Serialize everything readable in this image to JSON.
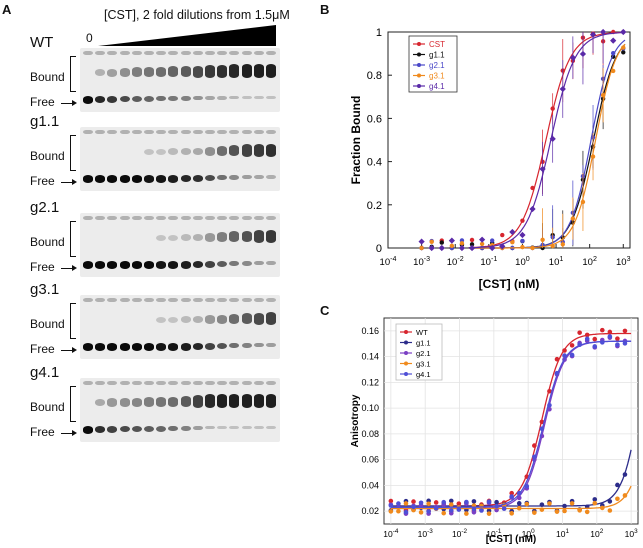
{
  "panel_labels": {
    "a": "A",
    "b": "B",
    "c": "C"
  },
  "panel_a": {
    "header": "[CST], 2 fold dilutions from 1.5μM",
    "zero_label": "0",
    "bound_label": "Bound",
    "free_label": "Free",
    "gels": [
      {
        "name": "WT",
        "bound_level": [
          0,
          0.15,
          0.25,
          0.35,
          0.45,
          0.5,
          0.55,
          0.6,
          0.65,
          0.75,
          0.85,
          0.9,
          0.95,
          1,
          1,
          1
        ]
      },
      {
        "name": "g1.1",
        "bound_level": [
          0,
          0,
          0,
          0,
          0,
          0.05,
          0.05,
          0.1,
          0.15,
          0.2,
          0.35,
          0.55,
          0.7,
          0.8,
          0.85,
          0.9
        ]
      },
      {
        "name": "g2.1",
        "bound_level": [
          0,
          0,
          0,
          0,
          0,
          0,
          0.05,
          0.05,
          0.1,
          0.15,
          0.3,
          0.45,
          0.6,
          0.7,
          0.8,
          0.85
        ]
      },
      {
        "name": "g3.1",
        "bound_level": [
          0,
          0,
          0,
          0,
          0,
          0,
          0.05,
          0.05,
          0.1,
          0.15,
          0.3,
          0.4,
          0.55,
          0.65,
          0.75,
          0.8
        ]
      },
      {
        "name": "g4.1",
        "bound_level": [
          0,
          0.2,
          0.3,
          0.35,
          0.4,
          0.45,
          0.5,
          0.55,
          0.65,
          0.8,
          0.95,
          1,
          1,
          1,
          1,
          1
        ]
      }
    ]
  },
  "chart_data": [
    {
      "type": "scatter",
      "panel": "B",
      "xlabel": "[CST] (nM)",
      "ylabel": "Fraction  Bound",
      "xscale": "log",
      "xlim": [
        -4,
        3.2
      ],
      "ylim": [
        0,
        1
      ],
      "xticks": [
        {
          "e": -4,
          "label": "10-4"
        },
        {
          "e": -3,
          "label": "10-3"
        },
        {
          "e": -2,
          "label": "10-2"
        },
        {
          "e": -1,
          "label": "10-1"
        },
        {
          "e": 0,
          "label": "100"
        },
        {
          "e": 1,
          "label": "101"
        },
        {
          "e": 2,
          "label": "102"
        },
        {
          "e": 3,
          "label": "103"
        }
      ],
      "yticks": [
        0,
        0.2,
        0.4,
        0.6,
        0.8,
        1
      ],
      "ytick_labels": [
        "0",
        "0.2",
        "0.4",
        "0.6",
        "0.8",
        "1"
      ],
      "legend_position": "top-left",
      "series": [
        {
          "name": "CST",
          "color": "#d7262f",
          "kd": 5,
          "n": 1.2
        },
        {
          "name": "g1.1",
          "color": "#111111",
          "kd": 130,
          "n": 1.3
        },
        {
          "name": "g2.1",
          "color": "#4a48c8",
          "kd": 110,
          "n": 1.4
        },
        {
          "name": "g3.1",
          "color": "#f08a1d",
          "kd": 150,
          "n": 1.4
        },
        {
          "name": "g4.1",
          "color": "#5a2aa8",
          "kd": 7,
          "n": 1.2
        }
      ]
    },
    {
      "type": "scatter",
      "panel": "C",
      "xlabel": "[CST] (nM)",
      "ylabel": "Anisotropy",
      "xscale": "log",
      "xlim": [
        -4.2,
        3.2
      ],
      "ylim": [
        0.01,
        0.17
      ],
      "xticks": [
        {
          "e": -4,
          "label": "10-4"
        },
        {
          "e": -3,
          "label": "10-3"
        },
        {
          "e": -2,
          "label": "10-2"
        },
        {
          "e": -1,
          "label": "10-1"
        },
        {
          "e": 0,
          "label": "100"
        },
        {
          "e": 1,
          "label": "101"
        },
        {
          "e": 2,
          "label": "102"
        },
        {
          "e": 3,
          "label": "103"
        }
      ],
      "yticks": [
        0.02,
        0.04,
        0.06,
        0.08,
        0.1,
        0.12,
        0.14,
        0.16
      ],
      "ytick_labels": [
        "0.02",
        "0.04",
        "0.06",
        "0.08",
        "0.10",
        "0.12",
        "0.14",
        "0.16"
      ],
      "legend_position": "top-left",
      "series": [
        {
          "name": "WT",
          "color": "#d7262f",
          "kd": 2.5,
          "n": 1.5,
          "base": 0.024,
          "top": 0.158
        },
        {
          "name": "g1.1",
          "color": "#2c2c8a",
          "kd": 2000,
          "n": 1.6,
          "base": 0.024,
          "top": 0.2
        },
        {
          "name": "g2.1",
          "color": "#7b3fc4",
          "kd": 3,
          "n": 1.5,
          "base": 0.022,
          "top": 0.152
        },
        {
          "name": "g3.1",
          "color": "#f08a1d",
          "kd": 4000,
          "n": 1.6,
          "base": 0.022,
          "top": 0.2
        },
        {
          "name": "g4.1",
          "color": "#4f4fd6",
          "kd": 2.8,
          "n": 1.5,
          "base": 0.023,
          "top": 0.152
        }
      ]
    }
  ]
}
